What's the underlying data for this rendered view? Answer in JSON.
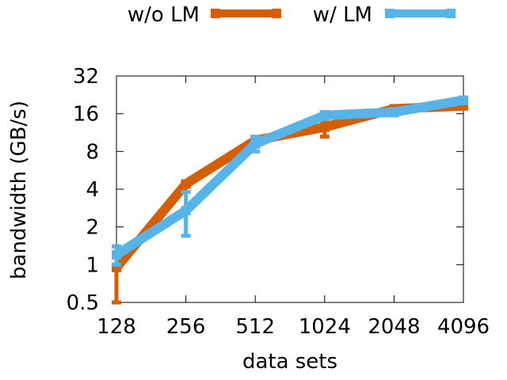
{
  "chart_data": {
    "type": "line",
    "xlabel": "data sets",
    "ylabel": "bandwidth (GB/s)",
    "x_scale": "log2",
    "y_scale": "log2",
    "categories": [
      "128",
      "256",
      "512",
      "1024",
      "2048",
      "4096"
    ],
    "x": [
      128,
      256,
      512,
      1024,
      2048,
      4096
    ],
    "yticks": [
      0.5,
      1,
      2,
      4,
      8,
      16,
      32
    ],
    "ytick_labels": [
      "0.5",
      "1",
      "2",
      "4",
      "8",
      "16",
      "32"
    ],
    "ylim": [
      0.5,
      32
    ],
    "legend_position": "top",
    "grid": false,
    "series": [
      {
        "name": "w/o LM",
        "color": "#d55e00",
        "values": [
          0.95,
          4.4,
          9.8,
          12.5,
          17.5,
          18.5
        ],
        "err_low": [
          0.5,
          4.2,
          9.4,
          10.5,
          17.0,
          17.8
        ],
        "err_high": [
          1.4,
          4.6,
          10.2,
          14.0,
          18.0,
          19.2
        ]
      },
      {
        "name": "w/ LM",
        "color": "#56b4e9",
        "values": [
          1.2,
          2.7,
          9.2,
          15.5,
          16.5,
          20.5
        ],
        "err_low": [
          1.0,
          1.7,
          8.0,
          14.5,
          15.5,
          19.5
        ],
        "err_high": [
          1.4,
          3.8,
          10.5,
          16.5,
          17.5,
          21.5
        ]
      }
    ]
  }
}
